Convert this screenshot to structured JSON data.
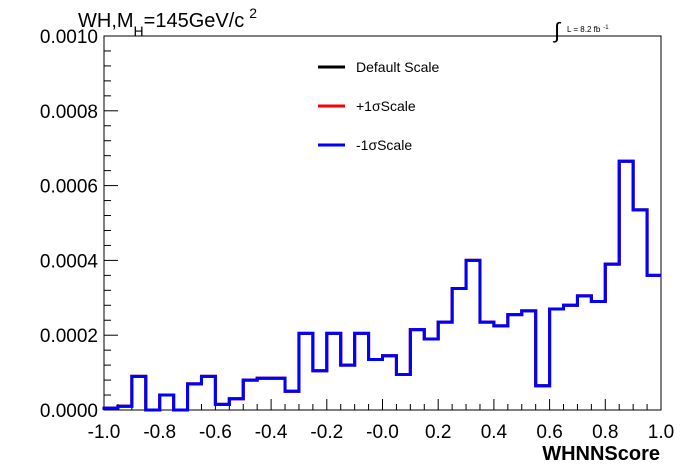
{
  "chart_data": {
    "type": "histogram",
    "title": {
      "main": "WH,M",
      "sub": "H",
      "rest": "=145GeV/c",
      "sup": "2"
    },
    "lumi": {
      "integral": "∫",
      "text": "L = 8.2 fb",
      "sup": "-1"
    },
    "xlabel": "WHNNScore",
    "ylabel": "",
    "xlim": [
      -1.0,
      1.0
    ],
    "ylim": [
      0.0,
      0.001
    ],
    "x_ticks": [
      "-1.0",
      "-0.8",
      "-0.6",
      "-0.4",
      "-0.2",
      "-0.0",
      "0.2",
      "0.4",
      "0.6",
      "0.8",
      "1.0"
    ],
    "y_ticks": [
      "0.0000",
      "0.0002",
      "0.0004",
      "0.0006",
      "0.0008",
      "0.0010"
    ],
    "legend": [
      {
        "label": "Default Scale",
        "color": "#000000"
      },
      {
        "label": "+1σScale",
        "color": "#ff0000"
      },
      {
        "label": "-1σScale",
        "color": "#0000ff"
      }
    ],
    "bin_edges": [
      -1.0,
      -0.95,
      -0.9,
      -0.85,
      -0.8,
      -0.75,
      -0.7,
      -0.65,
      -0.6,
      -0.55,
      -0.5,
      -0.45,
      -0.4,
      -0.35,
      -0.3,
      -0.25,
      -0.2,
      -0.15,
      -0.1,
      -0.05,
      0.0,
      0.05,
      0.1,
      0.15,
      0.2,
      0.25,
      0.3,
      0.35,
      0.4,
      0.45,
      0.5,
      0.55,
      0.6,
      0.65,
      0.7,
      0.75,
      0.8,
      0.85,
      0.9,
      0.95,
      1.0
    ],
    "series": [
      {
        "name": "Default Scale",
        "color": "#000000",
        "values": [
          5e-06,
          1e-05,
          9e-05,
          0.0,
          4e-05,
          0.0,
          7e-05,
          9e-05,
          1.5e-05,
          3e-05,
          8e-05,
          8.5e-05,
          8.5e-05,
          5e-05,
          0.000205,
          0.000105,
          0.000205,
          0.00012,
          0.000205,
          0.000135,
          0.000145,
          9.5e-05,
          0.000215,
          0.00019,
          0.000235,
          0.000325,
          0.0004,
          0.000235,
          0.000225,
          0.000255,
          0.000265,
          6.5e-05,
          0.00027,
          0.00028,
          0.000305,
          0.00029,
          0.00039,
          0.000665,
          0.000535,
          0.00036
        ]
      },
      {
        "name": "+1σScale",
        "color": "#ff0000",
        "values": [
          5e-06,
          1e-05,
          9e-05,
          0.0,
          4e-05,
          0.0,
          7e-05,
          9e-05,
          1.5e-05,
          3e-05,
          8e-05,
          8.5e-05,
          8.5e-05,
          5e-05,
          0.000205,
          0.000105,
          0.000205,
          0.00012,
          0.000205,
          0.000135,
          0.000145,
          9.5e-05,
          0.000215,
          0.00019,
          0.000235,
          0.000325,
          0.0004,
          0.000235,
          0.000225,
          0.000255,
          0.000265,
          6.5e-05,
          0.00027,
          0.00028,
          0.000305,
          0.00029,
          0.00039,
          0.000665,
          0.000535,
          0.00036
        ]
      },
      {
        "name": "-1σScale",
        "color": "#0000ff",
        "values": [
          5e-06,
          1e-05,
          9e-05,
          0.0,
          4e-05,
          0.0,
          7e-05,
          9e-05,
          1.5e-05,
          3e-05,
          8e-05,
          8.5e-05,
          8.5e-05,
          5e-05,
          0.000205,
          0.000105,
          0.000205,
          0.00012,
          0.000205,
          0.000135,
          0.000145,
          9.5e-05,
          0.000215,
          0.00019,
          0.000235,
          0.000325,
          0.0004,
          0.000235,
          0.000225,
          0.000255,
          0.000265,
          6.5e-05,
          0.00027,
          0.00028,
          0.000305,
          0.00029,
          0.00039,
          0.000665,
          0.000535,
          0.00036
        ]
      }
    ]
  }
}
